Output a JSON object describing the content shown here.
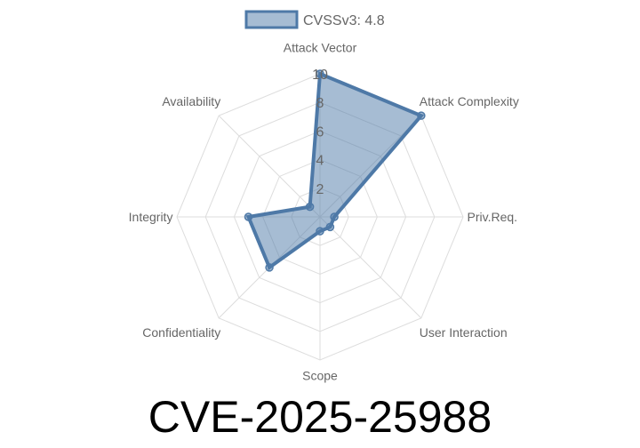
{
  "chart_data": {
    "type": "radar",
    "title": "CVE-2025-25988",
    "categories": [
      "Attack Vector",
      "Attack Complexity",
      "Priv.Req.",
      "User Interaction",
      "Scope",
      "Confidentiality",
      "Integrity",
      "Availability"
    ],
    "series": [
      {
        "name": "CVSSv3: 4.8",
        "values": [
          10,
          10,
          1,
          1,
          1,
          5,
          5,
          1
        ]
      }
    ],
    "rlim": [
      0,
      10
    ],
    "ticks": [
      "2",
      "4",
      "6",
      "8",
      "10"
    ],
    "grid": true,
    "legend": "top",
    "colors": {
      "line": "#4e79a7",
      "fill": "#4e79a7"
    }
  }
}
